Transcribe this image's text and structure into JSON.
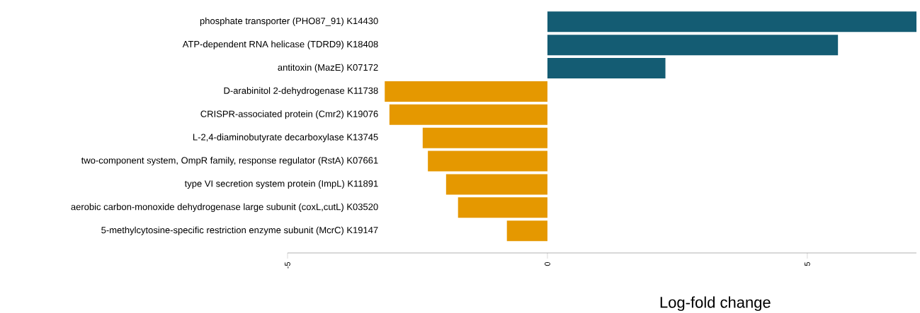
{
  "chart_data": {
    "type": "bar",
    "orientation": "horizontal",
    "xlabel": "Log-fold change",
    "categories": [
      "phosphate transporter (PHO87_91) K14430",
      "ATP-dependent RNA helicase (TDRD9)  K18408",
      "antitoxin (MazE) K07172",
      "D-arabinitol 2-dehydrogenase K11738",
      "CRISPR-associated protein (Cmr2) K19076",
      "L-2,4-diaminobutyrate decarboxylase K13745",
      "two-component system, OmpR family, response regulator (RstA) K07661",
      "type VI secretion system protein (ImpL) K11891",
      "aerobic carbon-monoxide dehydrogenase large subunit (coxL,cutL) K03520",
      "5-methylcytosine-specific restriction enzyme subunit (McrC) K19147"
    ],
    "values": [
      7.1,
      5.59,
      2.27,
      -3.13,
      -3.04,
      -2.4,
      -2.3,
      -1.95,
      -1.72,
      -0.78
    ],
    "colors": [
      "#145c73",
      "#145c73",
      "#145c73",
      "#e59800",
      "#e59800",
      "#e59800",
      "#e59800",
      "#e59800",
      "#e59800",
      "#e59800"
    ],
    "xlim": [
      -5,
      7.1
    ],
    "xticks": [
      -5,
      0,
      5
    ]
  }
}
